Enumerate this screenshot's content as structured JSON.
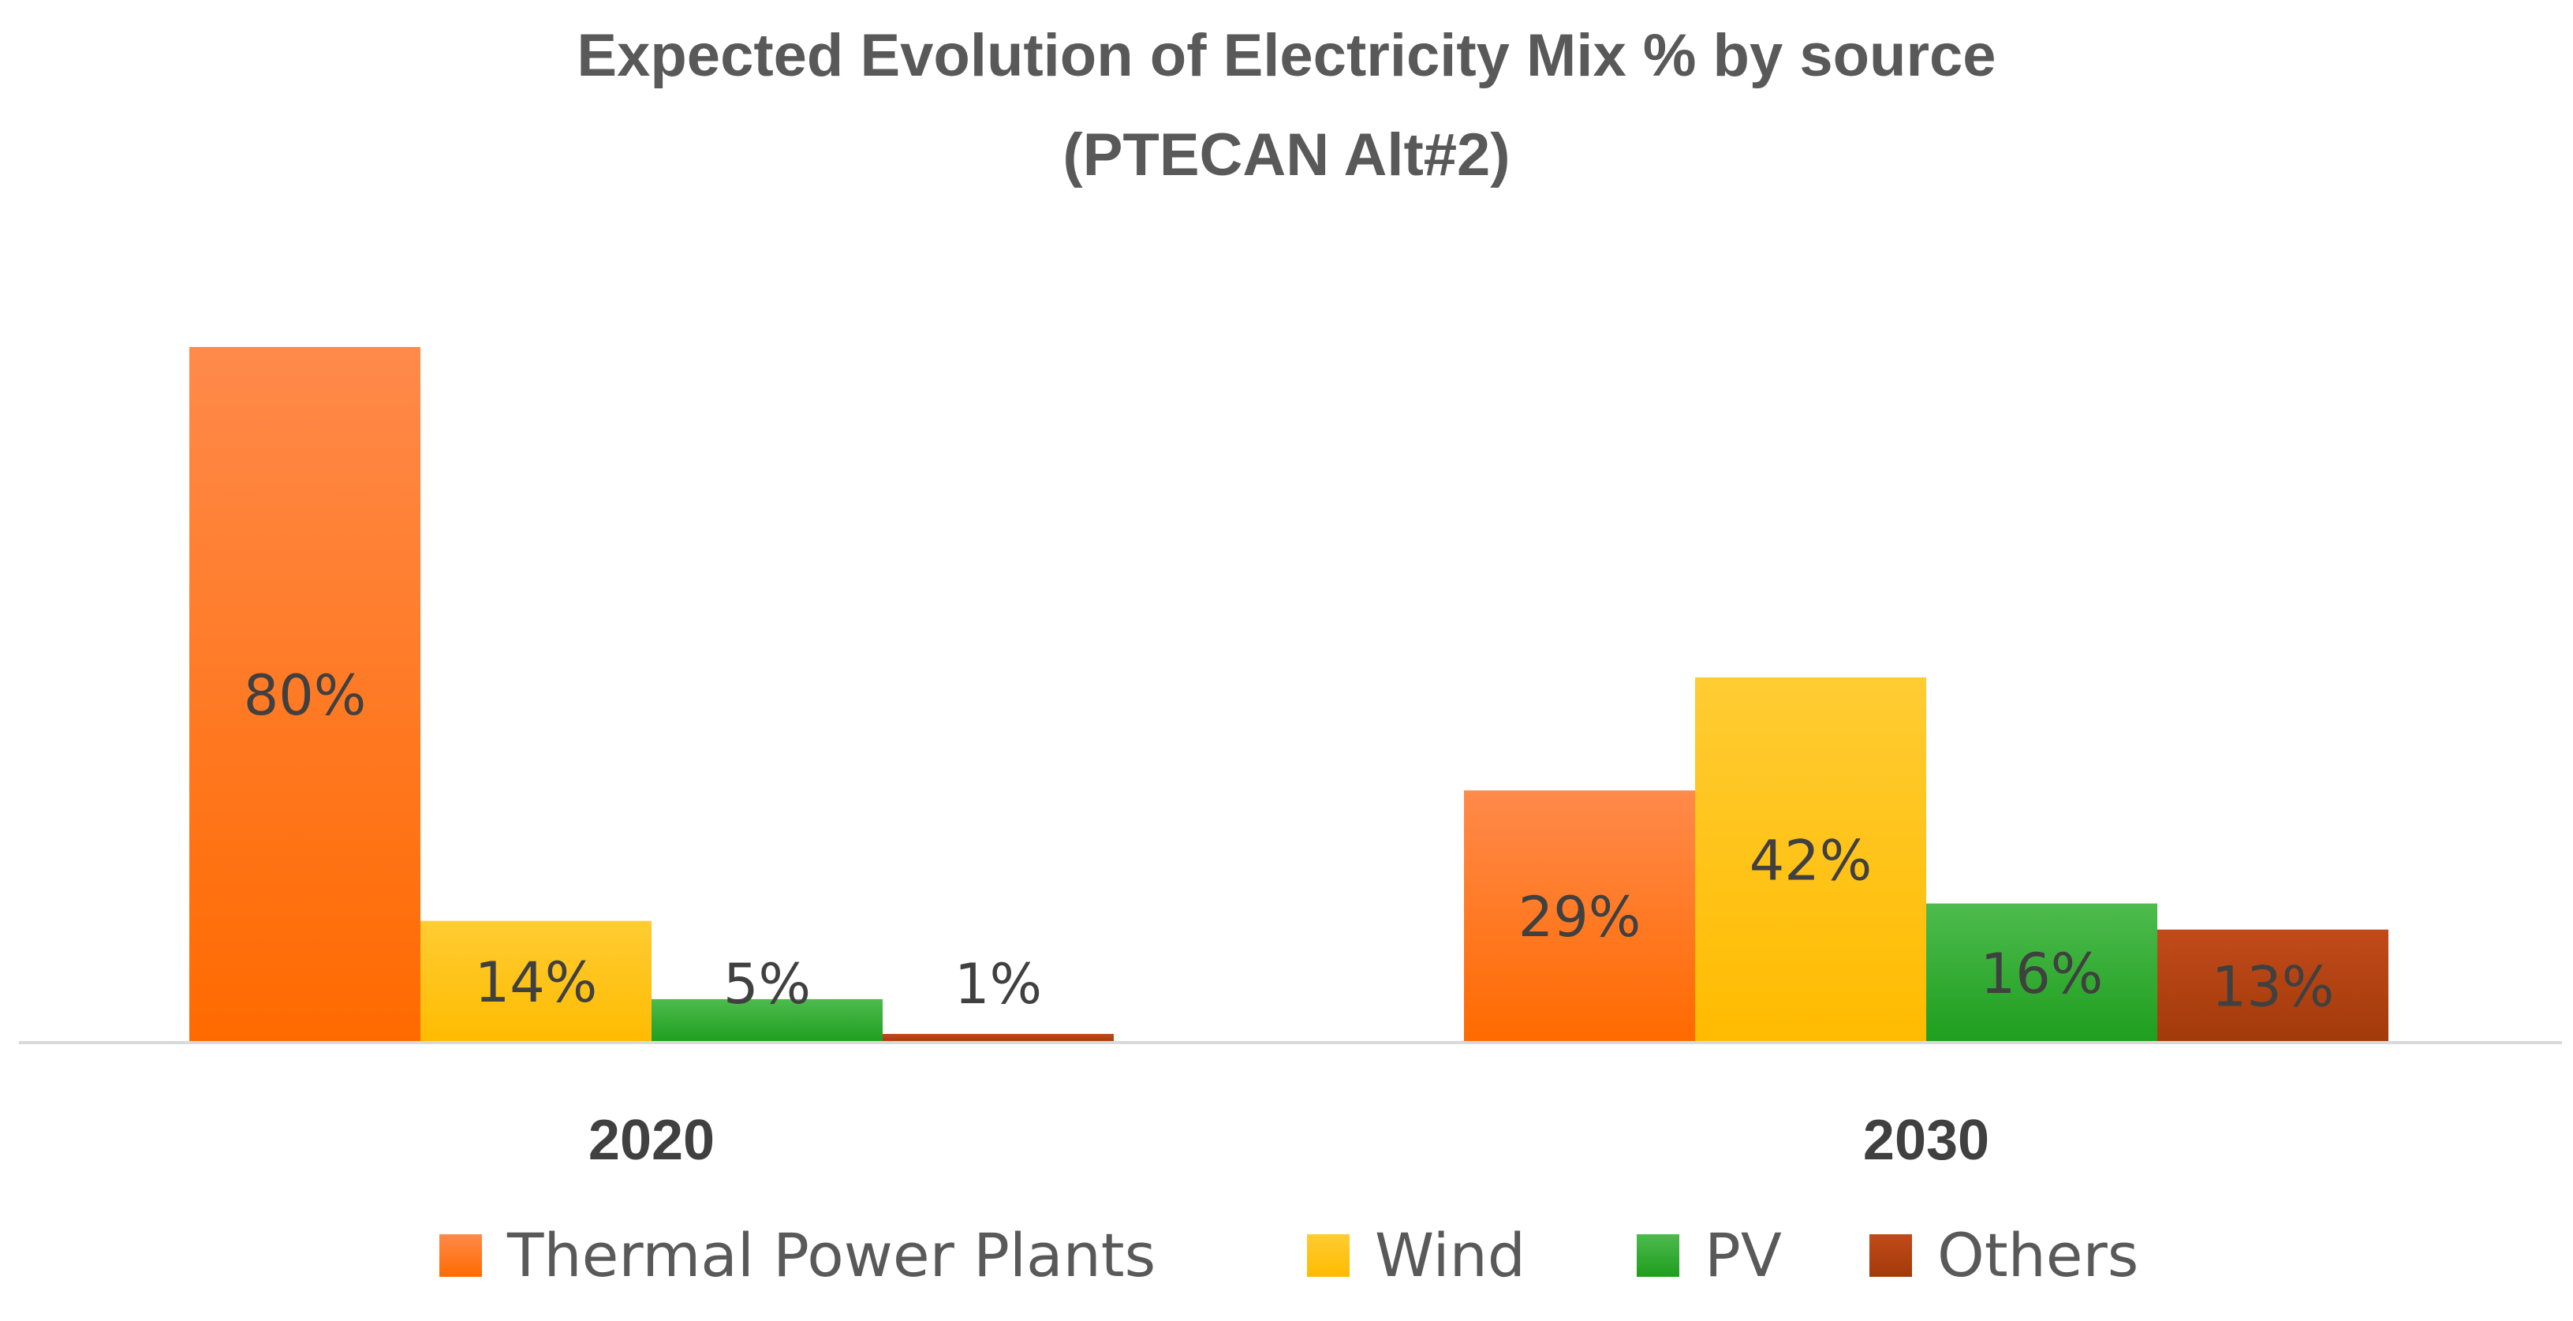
{
  "chart_data": {
    "type": "bar",
    "title": "Expected Evolution of Electricity Mix % by source",
    "subtitle": "(PTECAN Alt#2)",
    "categories": [
      "2020",
      "2030"
    ],
    "series": [
      {
        "name": "Thermal Power Plants",
        "values": [
          80,
          29
        ],
        "labels": [
          "80%",
          "29%"
        ],
        "color_top": "#FF8A4A",
        "color_bottom": "#FF6A00"
      },
      {
        "name": "Wind",
        "values": [
          14,
          42
        ],
        "labels": [
          "14%",
          "42%"
        ],
        "color_top": "#FFCC33",
        "color_bottom": "#FFBB00"
      },
      {
        "name": "PV",
        "values": [
          5,
          16
        ],
        "labels": [
          "5%",
          "16%"
        ],
        "color_top": "#4DBB4D",
        "color_bottom": "#1E9E1E"
      },
      {
        "name": "Others",
        "values": [
          1,
          13
        ],
        "labels": [
          "1%",
          "13%"
        ],
        "color_top": "#C24A1A",
        "color_bottom": "#A23A0A"
      }
    ],
    "xlabel": "",
    "ylabel": "",
    "ylim": [
      0,
      80
    ],
    "grid": false,
    "legend_position": "bottom"
  }
}
